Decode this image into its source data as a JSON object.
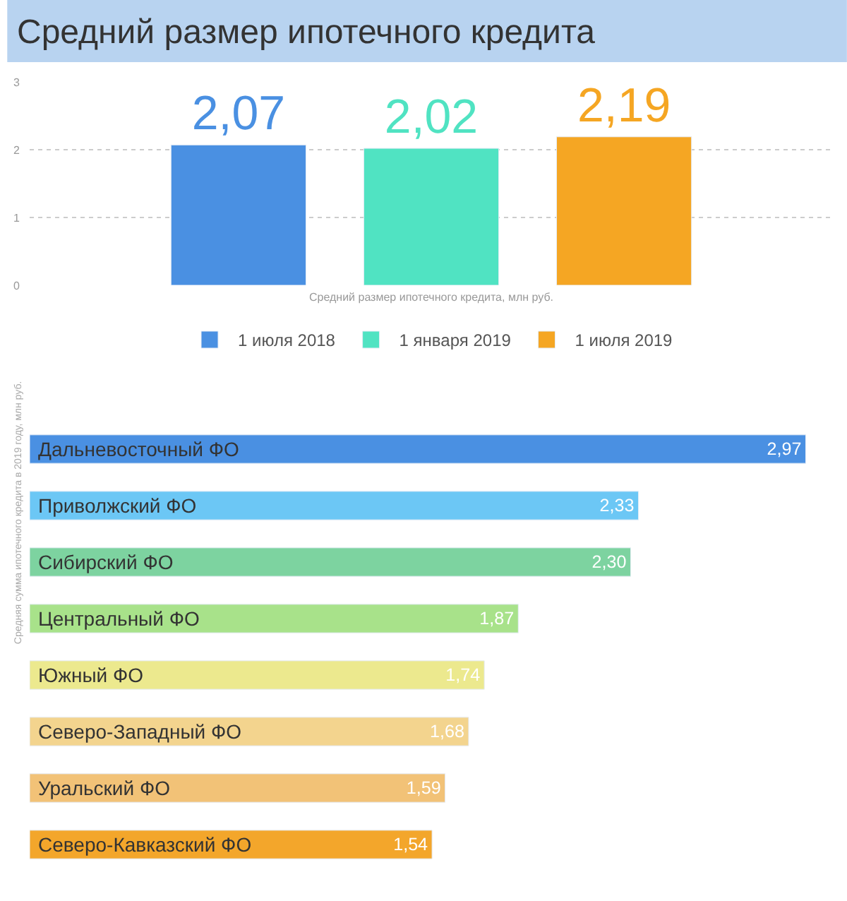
{
  "chart_data": [
    {
      "type": "bar",
      "title": "Средний размер ипотечного кредита",
      "xlabel": "Средний размер ипотечного кредита, млн руб.",
      "categories": [
        null
      ],
      "ylim": [
        0,
        3
      ],
      "yticks": [
        0,
        1,
        2,
        3
      ],
      "grid": "y",
      "legend": "bottom",
      "series": [
        {
          "name": "1 июля 2018",
          "color": "#4a90e2",
          "values": [
            2.07
          ],
          "value_labels": [
            "2,07"
          ]
        },
        {
          "name": "1 января 2019",
          "color": "#50e3c2",
          "values": [
            2.02
          ],
          "value_labels": [
            "2,02"
          ]
        },
        {
          "name": "1 июля 2019",
          "color": "#f5a623",
          "values": [
            2.19
          ],
          "value_labels": [
            "2,19"
          ]
        }
      ]
    },
    {
      "type": "bar",
      "orientation": "horizontal",
      "ylabel": "Средняя сумма ипотечного кредита в 2019 году, млн руб.",
      "categories": [
        "Дальневосточный ФО",
        "Приволжский ФО",
        "Сибирский ФО",
        "Центральный ФО",
        "Южный ФО",
        "Северо-Западный ФО",
        "Уральский ФО",
        "Северо-Кавказский ФО"
      ],
      "values": [
        2.97,
        2.33,
        2.3,
        1.87,
        1.74,
        1.68,
        1.59,
        1.54
      ],
      "value_labels": [
        "2,97",
        "2,33",
        "2,30",
        "1,87",
        "1,74",
        "1,68",
        "1,59",
        "1,54"
      ],
      "colors": [
        "#4a90e2",
        "#6cc7f5",
        "#7dd3a0",
        "#a8e28a",
        "#ece98e",
        "#f3d48e",
        "#f2c277",
        "#f3a62b"
      ],
      "legend": false
    }
  ]
}
